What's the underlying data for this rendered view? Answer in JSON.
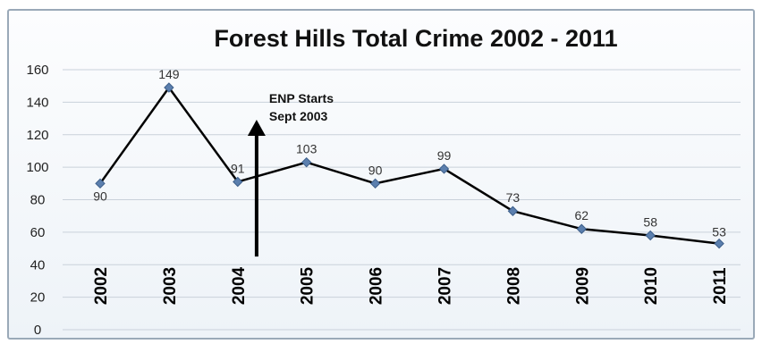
{
  "chart_data": {
    "type": "line",
    "title": "Forest Hills Total Crime 2002 - 2011",
    "categories": [
      "2002",
      "2003",
      "2004",
      "2005",
      "2006",
      "2007",
      "2008",
      "2009",
      "2010",
      "2011"
    ],
    "values": [
      90,
      149,
      91,
      103,
      90,
      99,
      73,
      62,
      58,
      53
    ],
    "ylim": [
      0,
      160
    ],
    "yticks": [
      0,
      20,
      40,
      60,
      80,
      100,
      120,
      140,
      160
    ],
    "grid": true,
    "legend": "none",
    "line_color": "#000000",
    "marker_color": "#5b7fae",
    "annotations": [
      {
        "text_lines": [
          "ENP Starts",
          "Sept 2003"
        ],
        "arrow_category": "2003",
        "arrow_from_value": 45,
        "arrow_to_value": 127
      }
    ]
  }
}
